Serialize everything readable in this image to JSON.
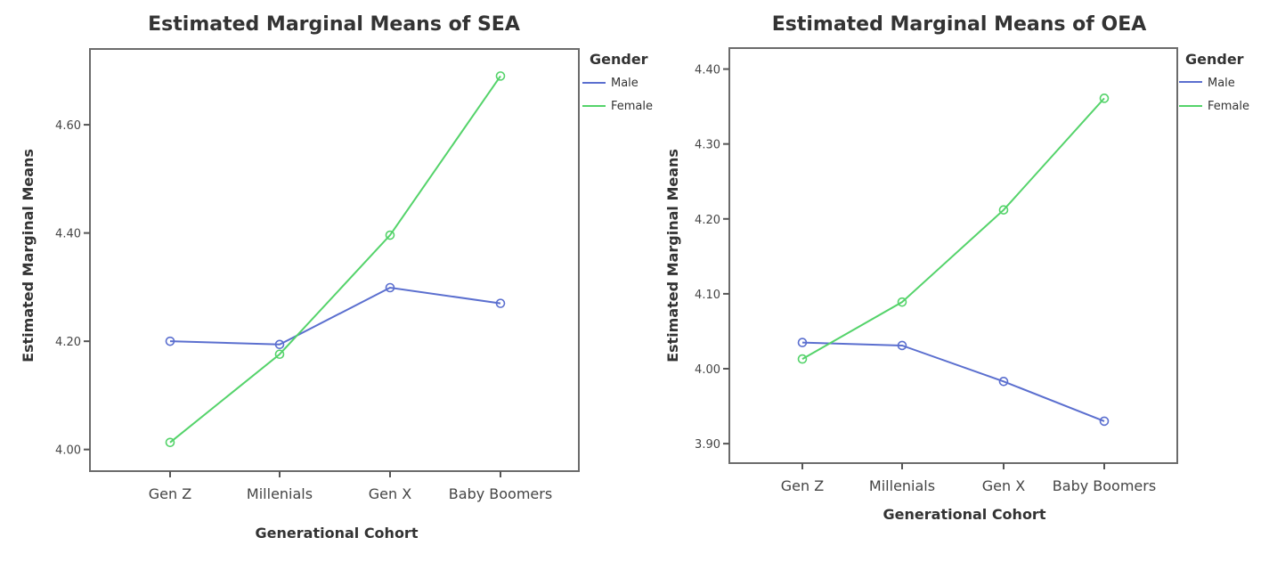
{
  "colors": {
    "male": "#5b6fcf",
    "female": "#54d36a"
  },
  "chart_data": [
    {
      "type": "line",
      "title": "Estimated Marginal Means of SEA",
      "xlabel": "Generational Cohort",
      "ylabel": "Estimated Marginal Means",
      "categories": [
        "Gen Z",
        "Millenials",
        "Gen X",
        "Baby Boomers"
      ],
      "yticks": [
        "4.00",
        "4.20",
        "4.40",
        "4.60"
      ],
      "ytick_values": [
        4.0,
        4.2,
        4.4,
        4.6
      ],
      "ylim": [
        3.96,
        4.74
      ],
      "grid": false,
      "legend": {
        "title": "Gender",
        "placement": "right-top"
      },
      "series": [
        {
          "name": "Male",
          "color": "#5b6fcf",
          "values": [
            4.2,
            4.194,
            4.299,
            4.27
          ]
        },
        {
          "name": "Female",
          "color": "#54d36a",
          "values": [
            4.013,
            4.176,
            4.396,
            4.69
          ]
        }
      ]
    },
    {
      "type": "line",
      "title": "Estimated Marginal Means of OEA",
      "xlabel": "Generational Cohort",
      "ylabel": "Estimated Marginal Means",
      "categories": [
        "Gen Z",
        "Millenials",
        "Gen X",
        "Baby Boomers"
      ],
      "yticks": [
        "3.90",
        "4.00",
        "4.10",
        "4.20",
        "4.30",
        "4.40"
      ],
      "ytick_values": [
        3.9,
        4.0,
        4.1,
        4.2,
        4.3,
        4.4
      ],
      "ylim": [
        3.874,
        4.428
      ],
      "grid": false,
      "legend": {
        "title": "Gender",
        "placement": "right-top"
      },
      "series": [
        {
          "name": "Male",
          "color": "#5b6fcf",
          "values": [
            4.035,
            4.031,
            3.983,
            3.93
          ]
        },
        {
          "name": "Female",
          "color": "#54d36a",
          "values": [
            4.013,
            4.089,
            4.212,
            4.361
          ]
        }
      ]
    }
  ]
}
